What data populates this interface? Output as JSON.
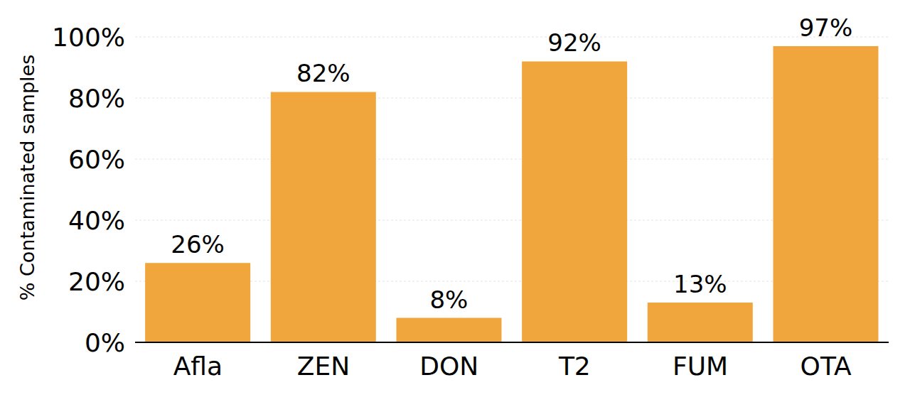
{
  "chart_data": {
    "type": "bar",
    "y_label": "% Contaminated samples",
    "categories": [
      "Afla",
      "ZEN",
      "DON",
      "T2",
      "FUM",
      "OTA"
    ],
    "values": [
      26,
      82,
      8,
      92,
      13,
      97
    ],
    "value_labels": [
      "26%",
      "82%",
      "8%",
      "92%",
      "13%",
      "97%"
    ],
    "color": "#f0a63c",
    "ylim": [
      0,
      100
    ],
    "yticks": [
      {
        "value": 0,
        "label": "0%"
      },
      {
        "value": 20,
        "label": "20%"
      },
      {
        "value": 40,
        "label": "40%"
      },
      {
        "value": 60,
        "label": "60%"
      },
      {
        "value": 80,
        "label": "80%"
      },
      {
        "value": 100,
        "label": "100%"
      }
    ],
    "grid": true,
    "data_labels": true
  }
}
